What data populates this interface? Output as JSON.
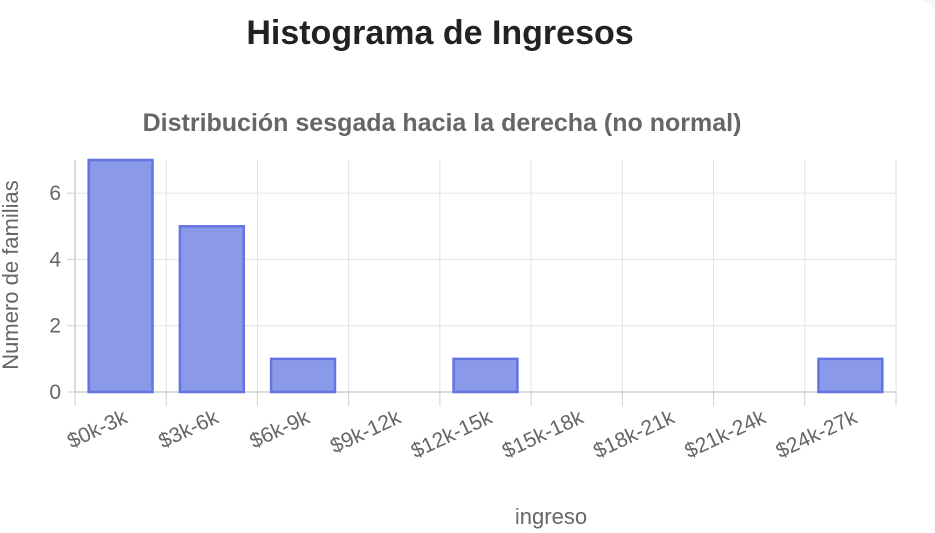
{
  "heading": "Histograma de Ingresos",
  "chart_data": {
    "type": "bar",
    "title": "Distribución sesgada hacia la derecha (no normal)",
    "xlabel": "ingreso",
    "ylabel": "Numero de familias",
    "categories": [
      "$0k-3k",
      "$3k-6k",
      "$6k-9k",
      "$9k-12k",
      "$12k-15k",
      "$15k-18k",
      "$18k-21k",
      "$21k-24k",
      "$24k-27k"
    ],
    "values": [
      7,
      5,
      1,
      0,
      1,
      0,
      0,
      0,
      1
    ],
    "ylim": [
      0,
      7
    ],
    "yticks": [
      0,
      2,
      4,
      6
    ],
    "grid": true,
    "bar_fill": "#8a9ae9",
    "bar_stroke": "#6374e3",
    "grid_color": "#e2e2e2",
    "axis_color": "#cfcfcf"
  }
}
